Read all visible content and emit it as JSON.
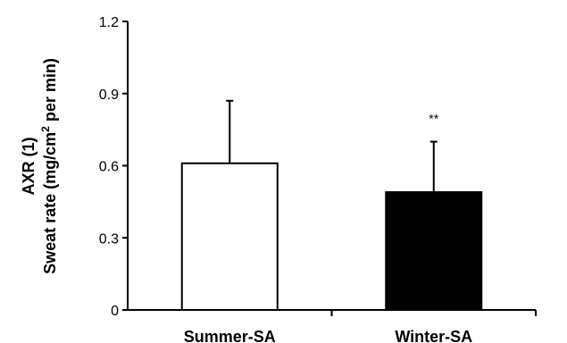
{
  "chart_data": {
    "type": "bar",
    "title": "",
    "xlabel": "",
    "ylabel_line1": "AXR (1)",
    "ylabel_line2_prefix": "Sweat rate (mg/cm",
    "ylabel_line2_sup": "2",
    "ylabel_line2_suffix": " per min)",
    "ylim": [
      0,
      1.2
    ],
    "yticks": [
      0,
      0.3,
      0.6,
      0.9,
      1.2
    ],
    "ytick_labels": [
      "0",
      "0.3",
      "0.6",
      "0.9",
      "1.2"
    ],
    "grid": false,
    "categories": [
      "Summer-SA",
      "Winter-SA"
    ],
    "values": [
      0.61,
      0.49
    ],
    "errors": [
      0.26,
      0.21
    ],
    "bar_colors": [
      "#ffffff",
      "#000000"
    ],
    "annotations": [
      "",
      "**"
    ]
  }
}
